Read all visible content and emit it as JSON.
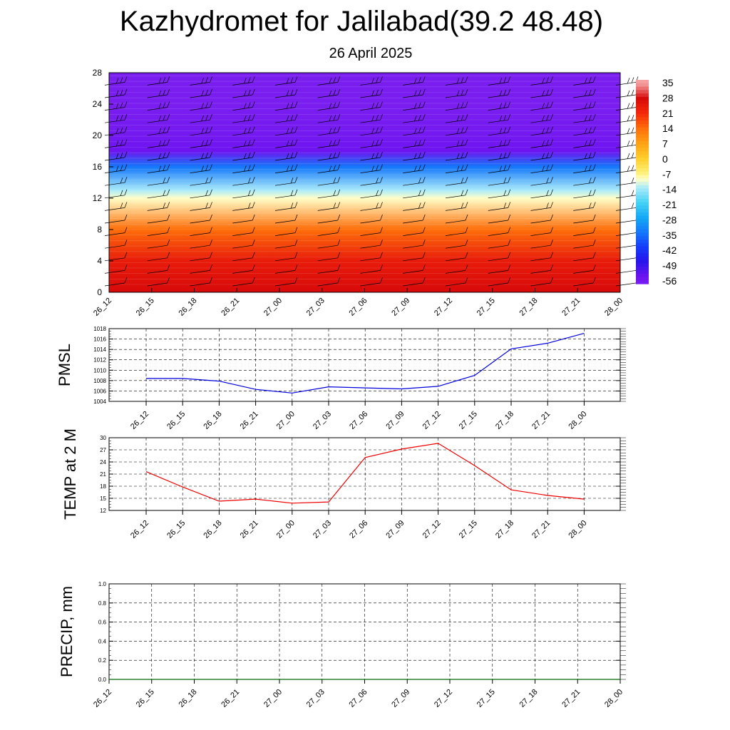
{
  "header": {
    "title": "Kazhydromet for Jalilabad(39.2 48.48)",
    "subtitle": "26 April 2025"
  },
  "chart_data": [
    {
      "type": "heatmap",
      "title": "",
      "description_of_axes": "time vs height level",
      "categories": [
        "26_12",
        "26_15",
        "26_18",
        "26_21",
        "27_00",
        "27_03",
        "27_06",
        "27_09",
        "27_12",
        "27_15",
        "27_18",
        "27_21",
        "28_00"
      ],
      "ylim": [
        0,
        28
      ],
      "yticks": [
        0,
        4,
        8,
        12,
        16,
        20,
        24,
        28
      ],
      "colorbar_labels": [
        "35",
        "28",
        "21",
        "14",
        "7",
        "0",
        "-7",
        "-14",
        "-21",
        "-28",
        "-35",
        "-42",
        "-49",
        "-56"
      ],
      "colorbar_values": [
        35,
        28,
        21,
        14,
        7,
        0,
        -7,
        -14,
        -21,
        -28,
        -35,
        -42,
        -49,
        -56
      ],
      "temperature_profile": [
        {
          "level": 0,
          "value": 28
        },
        {
          "level": 4,
          "value": 24
        },
        {
          "level": 8,
          "value": 14
        },
        {
          "level": 12,
          "value": -10
        },
        {
          "level": 13,
          "value": -14
        },
        {
          "level": 16,
          "value": -35
        },
        {
          "level": 18,
          "value": -56
        },
        {
          "level": 20,
          "value": -58
        },
        {
          "level": 24,
          "value": -60
        },
        {
          "level": 28,
          "value": -60
        }
      ],
      "wind_barbs": true,
      "grid": false
    },
    {
      "type": "line",
      "ylabel": "PMSL",
      "categories": [
        "26_12",
        "26_15",
        "26_18",
        "26_21",
        "27_00",
        "27_03",
        "27_06",
        "27_09",
        "27_12",
        "27_15",
        "27_18",
        "27_21",
        "28_00"
      ],
      "ylim": [
        1004,
        1018
      ],
      "yticks": [
        1004,
        1006,
        1008,
        1010,
        1012,
        1014,
        1016,
        1018
      ],
      "series": [
        {
          "values": [
            1008.4,
            1008.4,
            1007.9,
            1006.3,
            1005.6,
            1006.8,
            1006.6,
            1006.4,
            1006.9,
            1009.0,
            1014.1,
            1015.2,
            1017.1
          ],
          "color": "#0000dd"
        }
      ],
      "grid": true
    },
    {
      "type": "line",
      "ylabel": "TEMP at 2 M",
      "categories": [
        "26_12",
        "26_15",
        "26_18",
        "26_21",
        "27_00",
        "27_03",
        "27_06",
        "27_09",
        "27_12",
        "27_15",
        "27_18",
        "27_21",
        "28_00"
      ],
      "ylim": [
        12,
        30
      ],
      "yticks": [
        12,
        15,
        18,
        21,
        24,
        27,
        30
      ],
      "series": [
        {
          "values": [
            21.6,
            17.8,
            14.3,
            14.8,
            13.8,
            14.1,
            25.1,
            27.2,
            28.6,
            23.1,
            17.1,
            15.7,
            14.8
          ],
          "color": "#ee0000"
        }
      ],
      "grid": true
    },
    {
      "type": "line",
      "ylabel": "PRECIP, mm",
      "categories": [
        "26_12",
        "26_15",
        "26_18",
        "26_21",
        "27_00",
        "27_03",
        "27_06",
        "27_09",
        "27_12",
        "27_15",
        "27_18",
        "27_21",
        "28_00"
      ],
      "ylim": [
        0.0,
        1.0
      ],
      "yticks": [
        "0.0",
        "0.2",
        "0.4",
        "0.6",
        "0.8",
        "1.0"
      ],
      "series": [
        {
          "values": [
            0,
            0,
            0,
            0,
            0,
            0,
            0,
            0,
            0,
            0,
            0,
            0,
            0
          ],
          "color": "#006600"
        }
      ],
      "grid": true
    }
  ]
}
